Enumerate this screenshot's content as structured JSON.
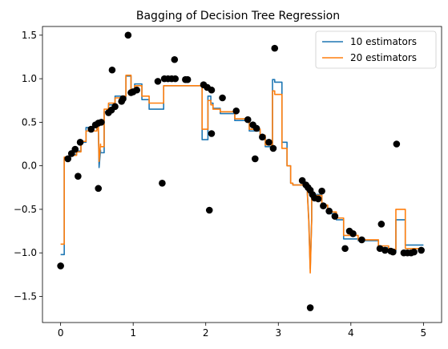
{
  "chart_data": {
    "type": "line",
    "title": "Bagging of Decision Tree Regression",
    "xlabel": "",
    "ylabel": "",
    "xlim": [
      -0.25,
      5.25
    ],
    "ylim": [
      -1.8,
      1.6
    ],
    "xticks": [
      0,
      1,
      2,
      3,
      4,
      5
    ],
    "xtick_labels": [
      "0",
      "1",
      "2",
      "3",
      "4",
      "5"
    ],
    "yticks": [
      -1.5,
      -1.0,
      -0.5,
      0.0,
      0.5,
      1.0,
      1.5
    ],
    "ytick_labels": [
      "−1.5",
      "−1.0",
      "−0.5",
      "0.0",
      "0.5",
      "1.0",
      "1.5"
    ],
    "grid": false,
    "legend_position": "top-right",
    "scatter": {
      "color": "#000000",
      "points": [
        [
          0.0,
          -1.15
        ],
        [
          0.1,
          0.08
        ],
        [
          0.15,
          0.14
        ],
        [
          0.2,
          0.19
        ],
        [
          0.24,
          -0.12
        ],
        [
          0.27,
          0.27
        ],
        [
          0.42,
          0.42
        ],
        [
          0.48,
          0.47
        ],
        [
          0.52,
          -0.26
        ],
        [
          0.52,
          0.49
        ],
        [
          0.56,
          0.5
        ],
        [
          0.66,
          0.61
        ],
        [
          0.7,
          0.64
        ],
        [
          0.71,
          1.1
        ],
        [
          0.75,
          0.68
        ],
        [
          0.84,
          0.74
        ],
        [
          0.86,
          0.77
        ],
        [
          0.93,
          1.5
        ],
        [
          0.97,
          0.84
        ],
        [
          1.0,
          0.85
        ],
        [
          1.05,
          0.87
        ],
        [
          1.34,
          0.97
        ],
        [
          1.4,
          -0.2
        ],
        [
          1.43,
          1.0
        ],
        [
          1.48,
          1.0
        ],
        [
          1.53,
          1.0
        ],
        [
          1.57,
          1.22
        ],
        [
          1.58,
          1.0
        ],
        [
          1.72,
          0.99
        ],
        [
          1.75,
          0.99
        ],
        [
          1.97,
          0.93
        ],
        [
          2.02,
          0.9
        ],
        [
          2.05,
          -0.51
        ],
        [
          2.08,
          0.37
        ],
        [
          2.08,
          0.87
        ],
        [
          2.23,
          0.78
        ],
        [
          2.42,
          0.63
        ],
        [
          2.58,
          0.53
        ],
        [
          2.65,
          0.47
        ],
        [
          2.68,
          0.08
        ],
        [
          2.7,
          0.43
        ],
        [
          2.78,
          0.33
        ],
        [
          2.87,
          0.27
        ],
        [
          2.93,
          0.2
        ],
        [
          2.95,
          1.35
        ],
        [
          3.33,
          -0.17
        ],
        [
          3.38,
          -0.22
        ],
        [
          3.41,
          -0.25
        ],
        [
          3.44,
          -0.28
        ],
        [
          3.44,
          -1.63
        ],
        [
          3.47,
          -0.33
        ],
        [
          3.5,
          -0.37
        ],
        [
          3.55,
          -0.38
        ],
        [
          3.6,
          -0.29
        ],
        [
          3.62,
          -0.46
        ],
        [
          3.7,
          -0.52
        ],
        [
          3.78,
          -0.58
        ],
        [
          3.92,
          -0.95
        ],
        [
          3.98,
          -0.75
        ],
        [
          4.03,
          -0.78
        ],
        [
          4.15,
          -0.85
        ],
        [
          4.4,
          -0.95
        ],
        [
          4.42,
          -0.67
        ],
        [
          4.47,
          -0.97
        ],
        [
          4.55,
          -0.98
        ],
        [
          4.58,
          -0.99
        ],
        [
          4.63,
          0.25
        ],
        [
          4.73,
          -1.0
        ],
        [
          4.78,
          -1.0
        ],
        [
          4.83,
          -1.0
        ],
        [
          4.87,
          -0.99
        ],
        [
          4.97,
          -0.97
        ]
      ]
    },
    "series": [
      {
        "name": "10 estimators",
        "color": "#1f77b4",
        "x": [
          0.0,
          0.05,
          0.05,
          0.12,
          0.12,
          0.22,
          0.22,
          0.28,
          0.28,
          0.35,
          0.35,
          0.5,
          0.5,
          0.52,
          0.53,
          0.55,
          0.55,
          0.6,
          0.6,
          0.66,
          0.66,
          0.75,
          0.75,
          0.84,
          0.84,
          0.9,
          0.9,
          0.97,
          0.97,
          1.02,
          1.02,
          1.12,
          1.12,
          1.22,
          1.22,
          1.42,
          1.42,
          1.95,
          1.95,
          2.03,
          2.03,
          2.07,
          2.07,
          2.1,
          2.1,
          2.2,
          2.2,
          2.4,
          2.4,
          2.6,
          2.6,
          2.75,
          2.75,
          2.82,
          2.82,
          2.92,
          2.92,
          2.95,
          2.95,
          3.05,
          3.05,
          3.12,
          3.12,
          3.17,
          3.17,
          3.2,
          3.2,
          3.4,
          3.4,
          3.42,
          3.44,
          3.46,
          3.46,
          3.6,
          3.6,
          3.68,
          3.68,
          3.8,
          3.8,
          3.9,
          3.9,
          4.1,
          4.1,
          4.38,
          4.38,
          4.52,
          4.52,
          4.62,
          4.62,
          4.75,
          4.75,
          5.0
        ],
        "y": [
          -1.02,
          -1.02,
          0.08,
          0.08,
          0.13,
          0.13,
          0.17,
          0.17,
          0.27,
          0.27,
          0.44,
          0.44,
          0.42,
          0.42,
          -0.02,
          0.18,
          0.15,
          0.15,
          0.62,
          0.62,
          0.7,
          0.7,
          0.8,
          0.8,
          0.79,
          0.79,
          1.03,
          1.03,
          0.88,
          0.88,
          0.94,
          0.94,
          0.76,
          0.76,
          0.65,
          0.65,
          0.92,
          0.92,
          0.3,
          0.3,
          0.8,
          0.8,
          0.72,
          0.72,
          0.66,
          0.66,
          0.6,
          0.6,
          0.52,
          0.52,
          0.4,
          0.4,
          0.33,
          0.33,
          0.22,
          0.22,
          0.99,
          0.99,
          0.96,
          0.96,
          0.27,
          0.27,
          0.0,
          0.0,
          -0.2,
          -0.2,
          -0.22,
          -0.22,
          -0.3,
          -0.62,
          -1.18,
          -0.62,
          -0.33,
          -0.33,
          -0.46,
          -0.46,
          -0.55,
          -0.55,
          -0.62,
          -0.62,
          -0.84,
          -0.84,
          -0.86,
          -0.86,
          -0.94,
          -0.94,
          -0.98,
          -0.98,
          -0.62,
          -0.62,
          -0.91,
          -0.91
        ]
      },
      {
        "name": "20 estimators",
        "color": "#ff7f0e",
        "x": [
          0.0,
          0.05,
          0.05,
          0.12,
          0.12,
          0.22,
          0.22,
          0.28,
          0.28,
          0.35,
          0.35,
          0.5,
          0.5,
          0.52,
          0.53,
          0.55,
          0.55,
          0.6,
          0.6,
          0.66,
          0.66,
          0.75,
          0.75,
          0.84,
          0.84,
          0.9,
          0.9,
          0.97,
          0.97,
          1.02,
          1.02,
          1.12,
          1.12,
          1.22,
          1.22,
          1.42,
          1.42,
          1.95,
          1.95,
          2.03,
          2.03,
          2.07,
          2.07,
          2.1,
          2.1,
          2.2,
          2.2,
          2.4,
          2.4,
          2.6,
          2.6,
          2.75,
          2.75,
          2.82,
          2.82,
          2.92,
          2.92,
          2.95,
          2.95,
          3.05,
          3.05,
          3.12,
          3.12,
          3.17,
          3.17,
          3.2,
          3.2,
          3.4,
          3.4,
          3.42,
          3.44,
          3.46,
          3.46,
          3.6,
          3.6,
          3.68,
          3.68,
          3.8,
          3.8,
          3.9,
          3.9,
          4.1,
          4.1,
          4.38,
          4.38,
          4.52,
          4.52,
          4.62,
          4.62,
          4.75,
          4.75,
          5.0
        ],
        "y": [
          -0.9,
          -0.9,
          0.1,
          0.1,
          0.12,
          0.12,
          0.16,
          0.16,
          0.28,
          0.28,
          0.4,
          0.4,
          0.45,
          0.45,
          0.05,
          0.25,
          0.22,
          0.22,
          0.65,
          0.65,
          0.72,
          0.72,
          0.78,
          0.78,
          0.8,
          0.8,
          1.04,
          1.04,
          0.86,
          0.86,
          0.92,
          0.92,
          0.8,
          0.8,
          0.72,
          0.72,
          0.92,
          0.92,
          0.42,
          0.42,
          0.75,
          0.75,
          0.7,
          0.7,
          0.65,
          0.65,
          0.62,
          0.62,
          0.54,
          0.54,
          0.42,
          0.42,
          0.35,
          0.35,
          0.24,
          0.24,
          0.86,
          0.86,
          0.82,
          0.82,
          0.2,
          0.2,
          0.0,
          0.0,
          -0.2,
          -0.2,
          -0.22,
          -0.22,
          -0.32,
          -0.64,
          -1.23,
          -0.62,
          -0.34,
          -0.34,
          -0.45,
          -0.45,
          -0.53,
          -0.53,
          -0.6,
          -0.6,
          -0.8,
          -0.8,
          -0.85,
          -0.85,
          -0.92,
          -0.92,
          -0.96,
          -0.96,
          -0.5,
          -0.5,
          -0.95,
          -0.95
        ]
      }
    ]
  }
}
